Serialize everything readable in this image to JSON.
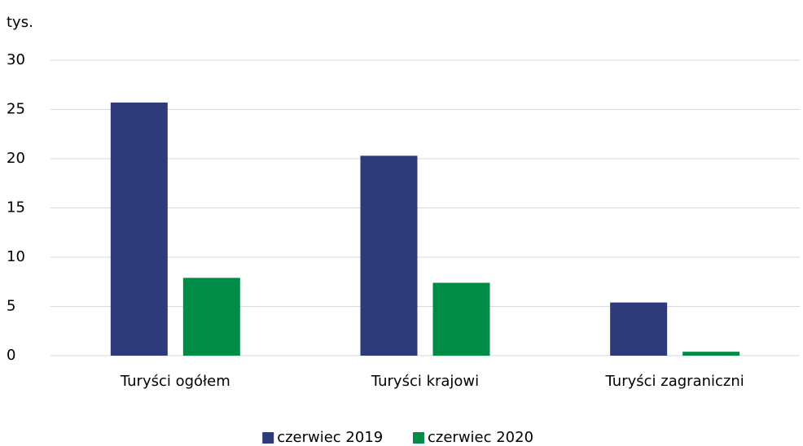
{
  "chart_data": {
    "type": "bar",
    "y_label": "tys.",
    "categories": [
      "Turyści ogółem",
      "Turyści krajowi",
      "Turyści zagraniczni"
    ],
    "series": [
      {
        "name": "czerwiec 2019",
        "color": "#2e3a7a",
        "values": [
          25.7,
          20.3,
          5.4
        ]
      },
      {
        "name": "czerwiec 2020",
        "color": "#008c47",
        "values": [
          7.9,
          7.4,
          0.4
        ]
      }
    ],
    "ylim": [
      0,
      30
    ],
    "yticks": [
      0,
      5,
      10,
      15,
      20,
      25,
      30
    ],
    "grid": true,
    "legend": "bottom"
  }
}
